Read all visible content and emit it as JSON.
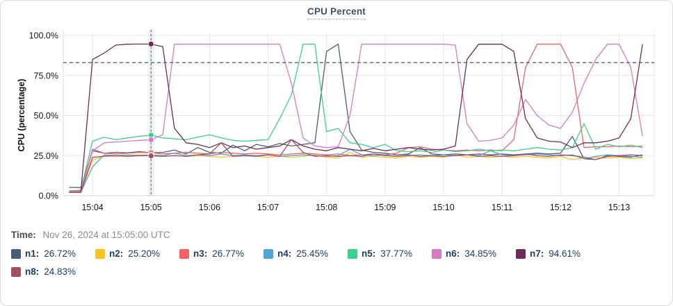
{
  "panel": {
    "title": "CPU Percent"
  },
  "chart_data": {
    "type": "line",
    "title": "CPU Percent",
    "xlabel": "",
    "ylabel": "CPU (percentage)",
    "ylim": [
      0,
      100
    ],
    "grid": true,
    "legend_position": "bottom",
    "y_ticks": [
      "0.0%",
      "25.0%",
      "50.0%",
      "75.0%",
      "100.0%"
    ],
    "y_tick_values": [
      0,
      25,
      50,
      75,
      100
    ],
    "x_ticks": [
      "15:04",
      "15:05",
      "15:06",
      "15:07",
      "15:08",
      "15:09",
      "15:10",
      "15:11",
      "15:12",
      "15:13"
    ],
    "x_range": [
      "15:03:30",
      "15:13:36"
    ],
    "threshold_value": 83,
    "crosshair_time": "15:05:00",
    "x": [
      "15:03:36",
      "15:03:48",
      "15:04:00",
      "15:04:12",
      "15:04:24",
      "15:04:36",
      "15:04:48",
      "15:05:00",
      "15:05:12",
      "15:05:24",
      "15:05:36",
      "15:05:48",
      "15:06:00",
      "15:06:12",
      "15:06:24",
      "15:06:36",
      "15:06:48",
      "15:07:00",
      "15:07:12",
      "15:07:24",
      "15:07:36",
      "15:07:48",
      "15:08:00",
      "15:08:12",
      "15:08:24",
      "15:08:36",
      "15:08:48",
      "15:09:00",
      "15:09:12",
      "15:09:24",
      "15:09:36",
      "15:09:48",
      "15:10:00",
      "15:10:12",
      "15:10:24",
      "15:10:36",
      "15:10:48",
      "15:11:00",
      "15:11:12",
      "15:11:24",
      "15:11:36",
      "15:11:48",
      "15:12:00",
      "15:12:12",
      "15:12:24",
      "15:12:36",
      "15:12:48",
      "15:13:00",
      "15:13:12",
      "15:13:24"
    ],
    "series": [
      {
        "name": "n1",
        "color": "#4b5c77",
        "values": [
          5.2,
          5.0,
          28,
          26.5,
          27,
          26.8,
          27.5,
          26.72,
          27,
          28.5,
          26,
          30,
          27,
          26.5,
          31.5,
          28,
          32,
          30.5,
          32.5,
          31,
          32,
          33,
          90,
          94.5,
          40,
          28.5,
          27,
          26.5,
          25.5,
          26,
          30,
          26,
          25.5,
          26,
          25.5,
          26,
          25.5,
          26,
          25.5,
          26,
          26.5,
          26,
          26.5,
          37,
          23,
          22.5,
          25,
          24.5,
          24,
          25.5
        ]
      },
      {
        "name": "n2",
        "color": "#fdc21e",
        "values": [
          2,
          2,
          22,
          25,
          24.5,
          25,
          25.5,
          25.2,
          24.5,
          25,
          24.5,
          25,
          24.5,
          24,
          24.5,
          25,
          24.5,
          24,
          24.5,
          24,
          24.5,
          25.5,
          24,
          23.5,
          27,
          24,
          24.5,
          24,
          23.5,
          24.5,
          24,
          24.5,
          24,
          25.5,
          24,
          24.5,
          24,
          24.5,
          24,
          24.5,
          24,
          23.5,
          24.5,
          22.5,
          23.5,
          24,
          23.5,
          24,
          23,
          23.5
        ]
      },
      {
        "name": "n3",
        "color": "#f2635f",
        "values": [
          2.5,
          3,
          29,
          26.5,
          26,
          26.5,
          27,
          26.77,
          26,
          26.5,
          27,
          26.5,
          26,
          27,
          26.5,
          26,
          26.5,
          26,
          25.5,
          26,
          26.5,
          26,
          25.5,
          26,
          25,
          25.5,
          26,
          25.5,
          26.5,
          30,
          30.5,
          29,
          28.5,
          28,
          28.5,
          28,
          28.5,
          28,
          35,
          80,
          94.5,
          94.5,
          94.5,
          80,
          30,
          30.5,
          30.5,
          31,
          30.5,
          31
        ]
      },
      {
        "name": "n4",
        "color": "#4da5d6",
        "values": [
          2,
          2,
          18,
          25.5,
          25,
          25.5,
          25,
          25.45,
          25,
          26.5,
          25,
          25.5,
          25,
          26,
          25,
          25.5,
          25,
          25.5,
          24.5,
          25,
          25.5,
          25,
          24.5,
          25,
          29,
          25.5,
          25,
          25.5,
          24.5,
          25,
          25.5,
          25,
          25.5,
          25,
          25.5,
          25,
          28,
          25.5,
          25,
          25.5,
          26,
          25.5,
          25,
          25.5,
          23,
          24.5,
          25.5,
          25,
          24.5,
          24
        ]
      },
      {
        "name": "n5",
        "color": "#3bd08d",
        "values": [
          3,
          3.5,
          34,
          36.5,
          35,
          36,
          37,
          37.77,
          36,
          35.5,
          35,
          36.5,
          38,
          36,
          34.5,
          34,
          34.5,
          35,
          48,
          63,
          94.5,
          94.5,
          40,
          42,
          33,
          32,
          30,
          32,
          28,
          27.5,
          28,
          27,
          28.5,
          27.5,
          28,
          29,
          28,
          28.5,
          28,
          29,
          30,
          29,
          28.5,
          30,
          45,
          29,
          32,
          30.5,
          31.5,
          30
        ]
      },
      {
        "name": "n6",
        "color": "#d77ac6",
        "values": [
          2,
          2.5,
          28,
          33,
          33.5,
          34,
          34.5,
          34.85,
          38,
          94.5,
          94.5,
          94.5,
          94.5,
          94.5,
          94.5,
          94.5,
          94.5,
          94.5,
          94.5,
          70,
          36,
          31,
          30,
          30.5,
          50,
          94.5,
          94.5,
          94.5,
          94.5,
          94.5,
          94.5,
          94.5,
          94.5,
          94,
          45,
          34,
          34.5,
          36,
          44,
          60,
          50,
          44,
          42,
          52,
          70,
          85,
          94.5,
          94.5,
          80,
          37
        ]
      },
      {
        "name": "n7",
        "color": "#6e2b58",
        "values": [
          2,
          2,
          85,
          89,
          94,
          94.5,
          94.6,
          94.61,
          93,
          42,
          33,
          32,
          30,
          33,
          30,
          31,
          29,
          30,
          31,
          35,
          31,
          29,
          28,
          30,
          29,
          28,
          29.5,
          28,
          29,
          30,
          29,
          28.5,
          29,
          31,
          85,
          94.5,
          94.5,
          94.5,
          90,
          48,
          36,
          34,
          33.5,
          30,
          33,
          33,
          34,
          36,
          48,
          94.5
        ]
      },
      {
        "name": "n8",
        "color": "#a64e62",
        "values": [
          2,
          2,
          24,
          24.5,
          25,
          24.5,
          25,
          24.83,
          24.5,
          25,
          24.5,
          25.5,
          26,
          33,
          24.5,
          25,
          24.5,
          25.5,
          24.5,
          35,
          27,
          24.5,
          25,
          24.5,
          25,
          24.5,
          26,
          25,
          24.5,
          25.5,
          24.5,
          25,
          24.5,
          25,
          25.5,
          24.5,
          25,
          24.5,
          25,
          26,
          25,
          24.5,
          25.5,
          25,
          24,
          22.5,
          24.5,
          25,
          25.5,
          25
        ]
      }
    ]
  },
  "tooltip": {
    "time_label": "Time:",
    "time_value": "Nov 26, 2024 at 15:05:00 UTC",
    "legend": [
      {
        "name": "n1",
        "label": "n1:",
        "value": "26.72%",
        "color": "#4b5c77"
      },
      {
        "name": "n2",
        "label": "n2:",
        "value": "25.20%",
        "color": "#fdc21e"
      },
      {
        "name": "n3",
        "label": "n3:",
        "value": "26.77%",
        "color": "#f2635f"
      },
      {
        "name": "n4",
        "label": "n4:",
        "value": "25.45%",
        "color": "#4da5d6"
      },
      {
        "name": "n5",
        "label": "n5:",
        "value": "37.77%",
        "color": "#3bd08d"
      },
      {
        "name": "n6",
        "label": "n6:",
        "value": "34.85%",
        "color": "#d77ac6"
      },
      {
        "name": "n7",
        "label": "n7:",
        "value": "94.61%",
        "color": "#6e2b58"
      },
      {
        "name": "n8",
        "label": "n8:",
        "value": "24.83%",
        "color": "#a64e62"
      }
    ]
  }
}
